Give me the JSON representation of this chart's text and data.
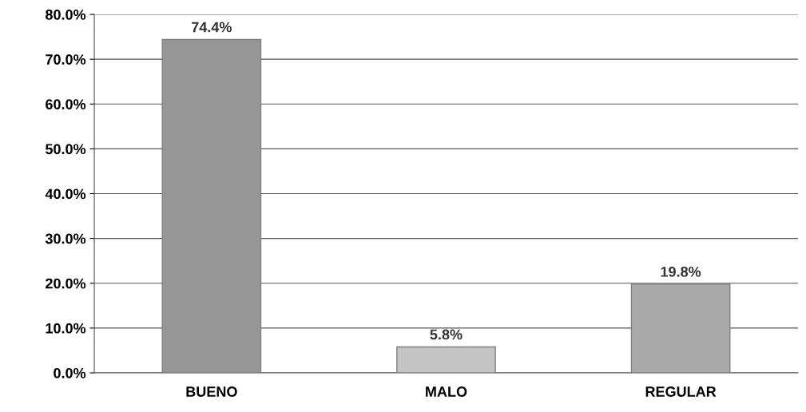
{
  "chart_data": {
    "type": "bar",
    "categories": [
      "BUENO",
      "MALO",
      "REGULAR"
    ],
    "values": [
      74.4,
      5.8,
      19.8
    ],
    "colors": [
      "#969696",
      "#c4c4c4",
      "#a9a9a9"
    ],
    "value_labels": [
      "74.4%",
      "5.8%",
      "19.8%"
    ],
    "ylim": [
      0,
      80
    ],
    "yticks": [
      {
        "value": 0,
        "label": "0.0%"
      },
      {
        "value": 10,
        "label": "10.0%"
      },
      {
        "value": 20,
        "label": "20.0%"
      },
      {
        "value": 30,
        "label": "30.0%"
      },
      {
        "value": 40,
        "label": "40.0%"
      },
      {
        "value": 50,
        "label": "50.0%"
      },
      {
        "value": 60,
        "label": "60.0%"
      },
      {
        "value": 70,
        "label": "70.0%"
      },
      {
        "value": 80,
        "label": "80.0%"
      }
    ],
    "grid": "y",
    "legend": false
  }
}
